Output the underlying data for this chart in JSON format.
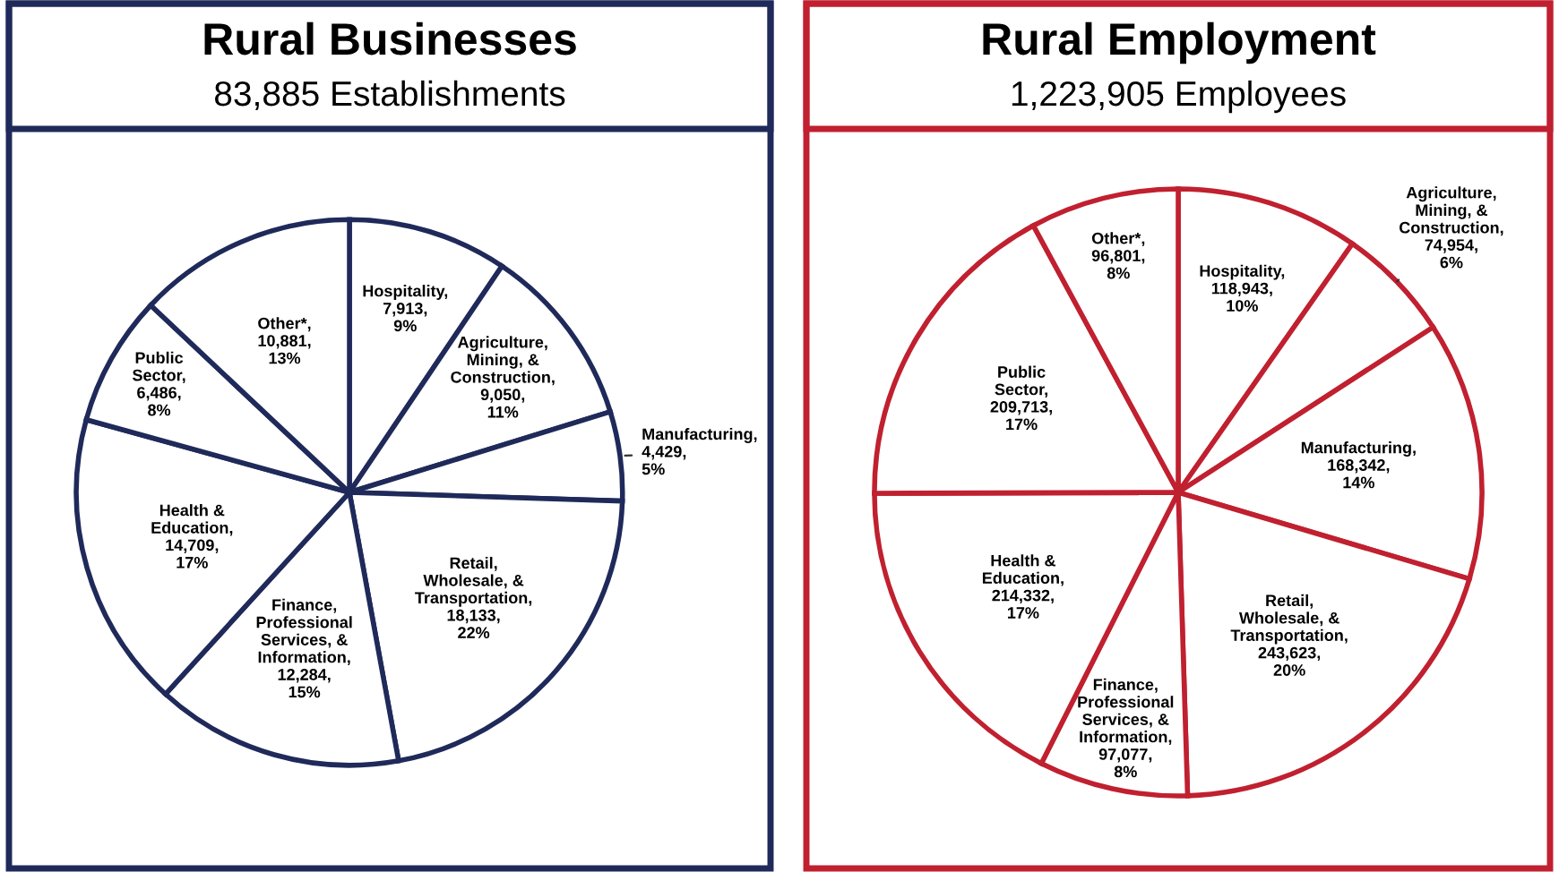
{
  "chart_data": [
    {
      "type": "pie",
      "title": "Rural Businesses",
      "subtitle": "83,885 Establishments",
      "categories": [
        "Hospitality",
        "Agriculture, Mining, & Construction",
        "Manufacturing",
        "Retail, Wholesale, & Transportation",
        "Finance, Professional Services, & Information",
        "Health & Education",
        "Public Sector",
        "Other*"
      ],
      "values": [
        7913,
        9050,
        4429,
        18133,
        12284,
        14709,
        6486,
        10881
      ],
      "value_labels": [
        ", 7,913, 9%",
        ", 9,050, 11%",
        ", 4,429, 5%",
        ", 18,133, 22%",
        ", 12,284, 15%",
        ", 14,709, 17%",
        ", 6,486, 8%",
        ", 10,881, 13%"
      ],
      "colors": [
        "#ffffff",
        "#ffffff",
        "#ffffff",
        "#ffffff",
        "#ffffff",
        "#ffffff",
        "#ffffff",
        "#ffffff"
      ]
    },
    {
      "type": "pie",
      "title": "Rural Employment",
      "subtitle": "1,223,905 Employees",
      "categories": [
        "Hospitality",
        "Agriculture, Mining, & Construction",
        "Manufacturing",
        "Retail, Wholesale, & Transportation",
        "Finance, Professional Services, & Information",
        "Health & Education",
        "Public Sector",
        "Other*"
      ],
      "values": [
        118943,
        74954,
        168342,
        243623,
        97077,
        214332,
        209713,
        96801
      ],
      "value_labels": [
        ", 118,943, 10%",
        ", 74,954, 6%",
        ", 168,342, 14%",
        ", 243,623, 20%",
        ", 97,077, 8%",
        ", 214,332, 17%",
        ", 209,713, 17%",
        ", 96,801, 8%"
      ],
      "colors": [
        "#ffffff",
        "#ffffff",
        "#ffffff",
        "#ffffff",
        "#ffffff",
        "#ffffff",
        "#ffffff",
        "#ffffff"
      ]
    }
  ]
}
